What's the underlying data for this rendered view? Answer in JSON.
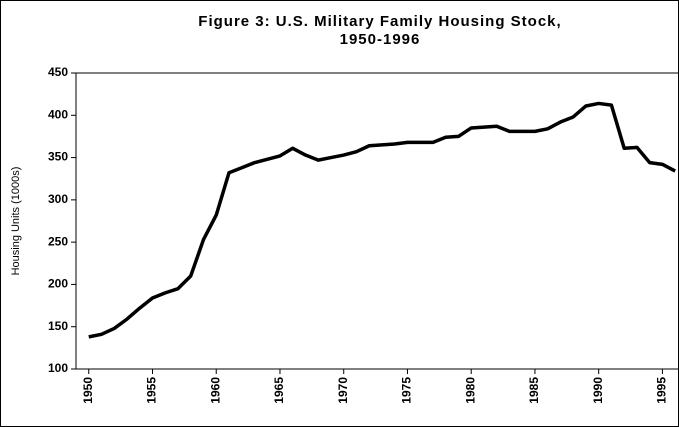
{
  "chart_data": {
    "type": "line",
    "title": "Figure 3: U.S. Military Family Housing Stock,",
    "subtitle": "1950-1996",
    "y_label": "Housing Units (1000s)",
    "x": [
      1950,
      1951,
      1952,
      1953,
      1954,
      1955,
      1956,
      1957,
      1958,
      1959,
      1960,
      1961,
      1962,
      1963,
      1964,
      1965,
      1966,
      1967,
      1968,
      1969,
      1970,
      1971,
      1972,
      1973,
      1974,
      1975,
      1976,
      1977,
      1978,
      1979,
      1980,
      1981,
      1982,
      1983,
      1984,
      1985,
      1986,
      1987,
      1988,
      1989,
      1990,
      1991,
      1992,
      1993,
      1994,
      1995,
      1996
    ],
    "series": [
      {
        "name": "Housing Units",
        "color": "#000000",
        "values": [
          138,
          141,
          148,
          159,
          172,
          184,
          190,
          195,
          210,
          253,
          282,
          332,
          338,
          344,
          348,
          352,
          361,
          353,
          347,
          350,
          353,
          357,
          364,
          365,
          366,
          368,
          368,
          368,
          374,
          375,
          385,
          386,
          387,
          381,
          381,
          381,
          384,
          392,
          398,
          411,
          414,
          412,
          361,
          362,
          344,
          342,
          334
        ]
      }
    ],
    "xlim": [
      1949,
      1996.3
    ],
    "xticks": [
      1950,
      1955,
      1960,
      1965,
      1970,
      1975,
      1980,
      1985,
      1990,
      1995
    ],
    "ylim": [
      100,
      450
    ],
    "yticks": [
      100,
      150,
      200,
      250,
      300,
      350,
      400,
      450
    ]
  }
}
